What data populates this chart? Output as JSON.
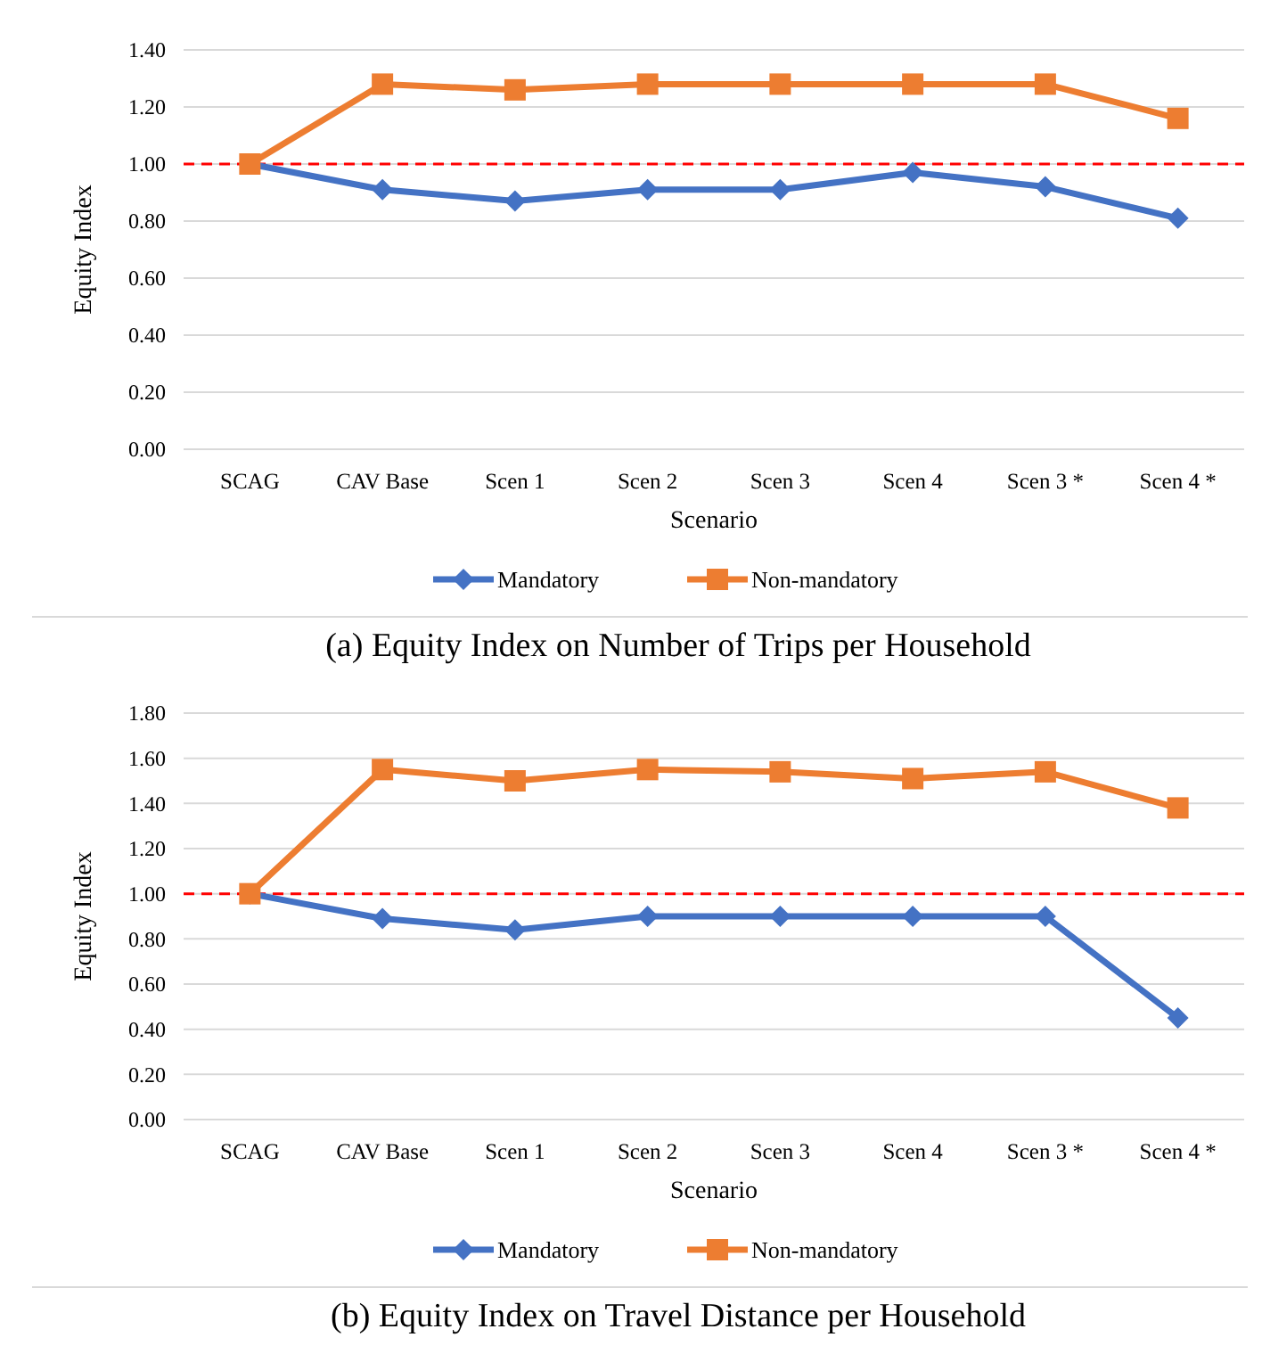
{
  "chart_data": [
    {
      "type": "line",
      "title": "(a) Equity Index on Number of Trips per Household",
      "xlabel": "Scenario",
      "ylabel": "Equity Index",
      "categories": [
        "SCAG",
        "CAV Base",
        "Scen 1",
        "Scen 2",
        "Scen 3",
        "Scen 4",
        "Scen 3 *",
        "Scen 4 *"
      ],
      "ylim": [
        0,
        1.4
      ],
      "yticks": [
        {
          "value": 0,
          "label": "0.00"
        },
        {
          "value": 0.2,
          "label": "0.20"
        },
        {
          "value": 0.4,
          "label": "0.40"
        },
        {
          "value": 0.6,
          "label": "0.60"
        },
        {
          "value": 0.8,
          "label": "0.80"
        },
        {
          "value": 1,
          "label": "1.00"
        },
        {
          "value": 1.2,
          "label": "1.20"
        },
        {
          "value": 1.4,
          "label": "1.40"
        }
      ],
      "grid": "y",
      "legend": "bottom",
      "line_style": "solid",
      "series": [
        {
          "name": "Mandatory",
          "color": "#4472c4",
          "marker": "diamond",
          "values": [
            1.0,
            0.91,
            0.87,
            0.91,
            0.91,
            0.97,
            0.92,
            0.81
          ]
        },
        {
          "name": "Non-mandatory",
          "color": "#ed7d31",
          "marker": "square",
          "values": [
            1.0,
            1.28,
            1.26,
            1.28,
            1.28,
            1.28,
            1.28,
            1.16
          ]
        }
      ],
      "ref_lines": [
        {
          "axis": "y",
          "value": 1,
          "color": "#ff0000",
          "line_style": "dashed"
        }
      ]
    },
    {
      "type": "line",
      "title": "(b) Equity Index on Travel Distance per Household",
      "xlabel": "Scenario",
      "ylabel": "Equity Index",
      "categories": [
        "SCAG",
        "CAV Base",
        "Scen 1",
        "Scen 2",
        "Scen 3",
        "Scen 4",
        "Scen 3 *",
        "Scen 4 *"
      ],
      "ylim": [
        0,
        1.8
      ],
      "yticks": [
        {
          "value": 0,
          "label": "0.00"
        },
        {
          "value": 0.2,
          "label": "0.20"
        },
        {
          "value": 0.4,
          "label": "0.40"
        },
        {
          "value": 0.6,
          "label": "0.60"
        },
        {
          "value": 0.8,
          "label": "0.80"
        },
        {
          "value": 1,
          "label": "1.00"
        },
        {
          "value": 1.2,
          "label": "1.20"
        },
        {
          "value": 1.4,
          "label": "1.40"
        },
        {
          "value": 1.6,
          "label": "1.60"
        },
        {
          "value": 1.8,
          "label": "1.80"
        }
      ],
      "grid": "y",
      "legend": "bottom",
      "line_style": "solid",
      "series": [
        {
          "name": "Mandatory",
          "color": "#4472c4",
          "marker": "diamond",
          "values": [
            1.0,
            0.89,
            0.84,
            0.9,
            0.9,
            0.9,
            0.9,
            0.45
          ]
        },
        {
          "name": "Non-mandatory",
          "color": "#ed7d31",
          "marker": "square",
          "values": [
            1.0,
            1.55,
            1.5,
            1.55,
            1.54,
            1.51,
            1.54,
            1.38
          ]
        }
      ],
      "ref_lines": [
        {
          "axis": "y",
          "value": 1,
          "color": "#ff0000",
          "line_style": "dashed"
        }
      ]
    }
  ]
}
